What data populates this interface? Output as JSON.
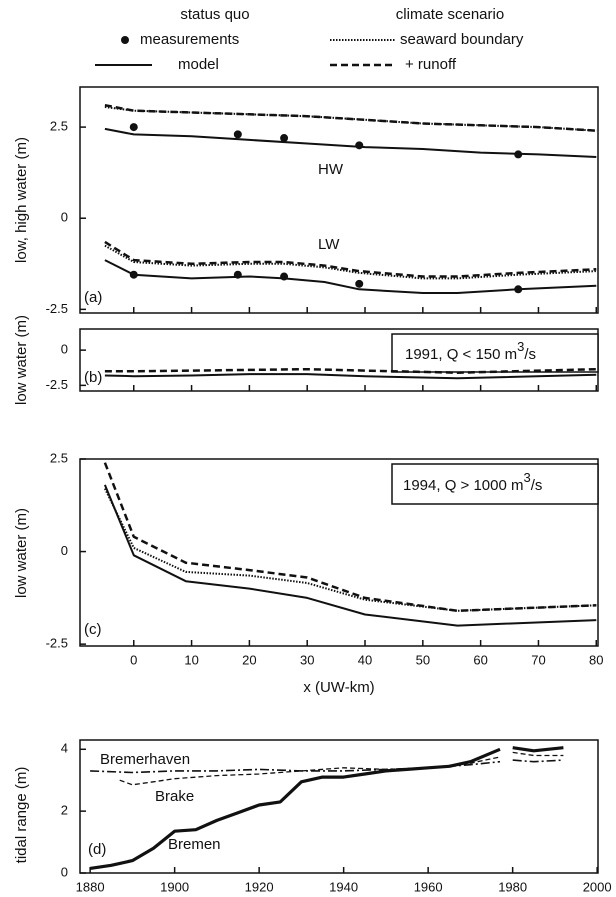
{
  "legend": {
    "headers": [
      "status quo",
      "climate scenario"
    ],
    "entries": [
      {
        "label": "measurements",
        "style": "dots"
      },
      {
        "label": "model",
        "style": "solid"
      },
      {
        "label": "seaward boundary",
        "style": "dotted"
      },
      {
        "label": "+ runoff",
        "style": "dashed"
      }
    ]
  },
  "chart_data": [
    {
      "type": "line",
      "ylabel": "low, high water (m)",
      "annotations": [
        "HW",
        "LW",
        "(a)"
      ],
      "xlim": [
        -9.3,
        80.3
      ],
      "xticks": [
        0,
        10,
        20,
        30,
        40,
        50,
        60,
        70,
        80
      ],
      "ylim": [
        -2.6,
        3.6
      ],
      "yticks": [
        2.5,
        0,
        -2.5
      ],
      "series": [
        {
          "style": "solid",
          "x": [
            -5,
            0,
            10,
            20,
            30,
            40,
            50,
            60,
            70,
            80
          ],
          "values": [
            2.45,
            2.3,
            2.25,
            2.15,
            2.05,
            1.95,
            1.9,
            1.8,
            1.75,
            1.68
          ]
        },
        {
          "style": "dotted",
          "x": [
            -5,
            0,
            10,
            20,
            30,
            40,
            50,
            60,
            70,
            80
          ],
          "values": [
            3.05,
            2.95,
            2.9,
            2.85,
            2.8,
            2.7,
            2.6,
            2.55,
            2.5,
            2.4
          ]
        },
        {
          "style": "dashed",
          "x": [
            -5,
            0,
            10,
            20,
            30,
            40,
            50,
            60,
            70,
            80
          ],
          "values": [
            3.1,
            2.95,
            2.9,
            2.85,
            2.8,
            2.7,
            2.6,
            2.55,
            2.5,
            2.4
          ]
        },
        {
          "style": "solid",
          "x": [
            -5,
            0,
            10,
            20,
            26,
            33,
            39,
            50,
            56,
            66.5,
            80
          ],
          "values": [
            -1.15,
            -1.55,
            -1.65,
            -1.6,
            -1.65,
            -1.75,
            -1.95,
            -2.05,
            -2.05,
            -1.95,
            -1.85
          ]
        },
        {
          "style": "dotted",
          "x": [
            -5,
            0,
            10,
            20,
            26,
            33,
            39,
            50,
            56,
            66.5,
            80
          ],
          "values": [
            -0.75,
            -1.2,
            -1.3,
            -1.25,
            -1.25,
            -1.35,
            -1.5,
            -1.65,
            -1.65,
            -1.55,
            -1.45
          ]
        },
        {
          "style": "dashed",
          "x": [
            -5,
            0,
            10,
            20,
            26,
            33,
            39,
            50,
            56,
            66.5,
            80
          ],
          "values": [
            -0.65,
            -1.15,
            -1.25,
            -1.2,
            -1.2,
            -1.3,
            -1.45,
            -1.6,
            -1.6,
            -1.5,
            -1.4
          ]
        },
        {
          "style": "dots",
          "x": [
            0,
            18,
            26,
            39,
            66.5
          ],
          "values": [
            2.5,
            2.3,
            2.2,
            2.0,
            1.75
          ]
        },
        {
          "style": "dots",
          "x": [
            0,
            18,
            26,
            39,
            66.5
          ],
          "values": [
            -1.55,
            -1.55,
            -1.6,
            -1.8,
            -1.95
          ]
        }
      ]
    },
    {
      "type": "line",
      "ylabel": "low water (m)",
      "annotations": [
        "(b)"
      ],
      "box_label": [
        "1991,  Q < 150 m",
        "3",
        "/s"
      ],
      "xlim": [
        -9.3,
        80.3
      ],
      "xticks": [
        0,
        10,
        20,
        30,
        40,
        50,
        60,
        70,
        80
      ],
      "ylim": [
        -2.9,
        1.5
      ],
      "yticks": [
        0,
        -2.5
      ],
      "series": [
        {
          "style": "solid",
          "x": [
            -5,
            0,
            10,
            20,
            30,
            40,
            56,
            80
          ],
          "values": [
            -1.8,
            -1.85,
            -1.8,
            -1.7,
            -1.7,
            -1.85,
            -2.0,
            -1.75
          ]
        },
        {
          "style": "dashed",
          "x": [
            -5,
            0,
            10,
            20,
            30,
            40,
            56,
            80
          ],
          "values": [
            -1.5,
            -1.5,
            -1.45,
            -1.4,
            -1.35,
            -1.45,
            -1.6,
            -1.35
          ]
        }
      ]
    },
    {
      "type": "line",
      "ylabel": "low water (m)",
      "xlabel": "x (UW-km)",
      "annotations": [
        "(c)"
      ],
      "box_label": [
        "1994,  Q > 1000 m",
        "3",
        "/s"
      ],
      "xlim": [
        -9.3,
        80.3
      ],
      "xticks": [
        0,
        10,
        20,
        30,
        40,
        50,
        60,
        70,
        80
      ],
      "ylim": [
        -2.55,
        2.5
      ],
      "yticks": [
        2.5,
        0,
        -2.5
      ],
      "series": [
        {
          "style": "solid",
          "x": [
            -5,
            0,
            9,
            20,
            30,
            40,
            56,
            80
          ],
          "values": [
            1.8,
            -0.1,
            -0.8,
            -1.0,
            -1.25,
            -1.7,
            -2.0,
            -1.85
          ]
        },
        {
          "style": "dotted",
          "x": [
            -5,
            0,
            9,
            20,
            30,
            40,
            56,
            80
          ],
          "values": [
            1.7,
            0.1,
            -0.55,
            -0.65,
            -0.85,
            -1.3,
            -1.6,
            -1.45
          ]
        },
        {
          "style": "dashed",
          "x": [
            -5,
            0,
            9,
            20,
            30,
            40,
            56,
            80
          ],
          "values": [
            2.4,
            0.4,
            -0.3,
            -0.5,
            -0.7,
            -1.25,
            -1.6,
            -1.45
          ]
        }
      ]
    },
    {
      "type": "line",
      "ylabel": "tidal range (m)",
      "annotations": [
        "(d)"
      ],
      "xlim": [
        1877.6,
        2000.2
      ],
      "xticks": [
        1880,
        1900,
        1920,
        1940,
        1960,
        1980,
        2000
      ],
      "ylim": [
        0,
        4.3
      ],
      "yticks": [
        0,
        2,
        4
      ],
      "series": [
        {
          "name": "Bremerhaven",
          "style": "dashdot",
          "x": [
            1880,
            1890,
            1900,
            1910,
            1920,
            1930,
            1940,
            1950,
            1960,
            1970,
            1977,
            1978.5,
            1980,
            1985,
            1992
          ],
          "values": [
            3.3,
            3.25,
            3.3,
            3.3,
            3.35,
            3.3,
            3.3,
            3.35,
            3.4,
            3.5,
            3.6,
            null,
            3.65,
            3.6,
            3.65
          ]
        },
        {
          "name": "Brake",
          "style": "thindash",
          "x": [
            1887,
            1890,
            1895,
            1900,
            1910,
            1920,
            1930,
            1940,
            1950,
            1960,
            1970,
            1977,
            1978.5,
            1980,
            1985,
            1992
          ],
          "values": [
            3.0,
            2.85,
            2.95,
            3.05,
            3.15,
            3.2,
            3.3,
            3.4,
            3.35,
            3.4,
            3.55,
            3.75,
            null,
            3.9,
            3.8,
            3.8
          ]
        },
        {
          "name": "Bremen",
          "style": "thick",
          "x": [
            1880,
            1885,
            1890,
            1895,
            1900,
            1905,
            1910,
            1915,
            1920,
            1925,
            1930,
            1935,
            1940,
            1945,
            1950,
            1955,
            1960,
            1965,
            1970,
            1977,
            1978.5,
            1980,
            1985,
            1992
          ],
          "values": [
            0.15,
            0.25,
            0.4,
            0.8,
            1.35,
            1.4,
            1.7,
            1.95,
            2.2,
            2.3,
            2.95,
            3.1,
            3.1,
            3.2,
            3.3,
            3.35,
            3.4,
            3.45,
            3.6,
            4.0,
            null,
            4.05,
            3.95,
            4.05
          ]
        }
      ]
    }
  ]
}
